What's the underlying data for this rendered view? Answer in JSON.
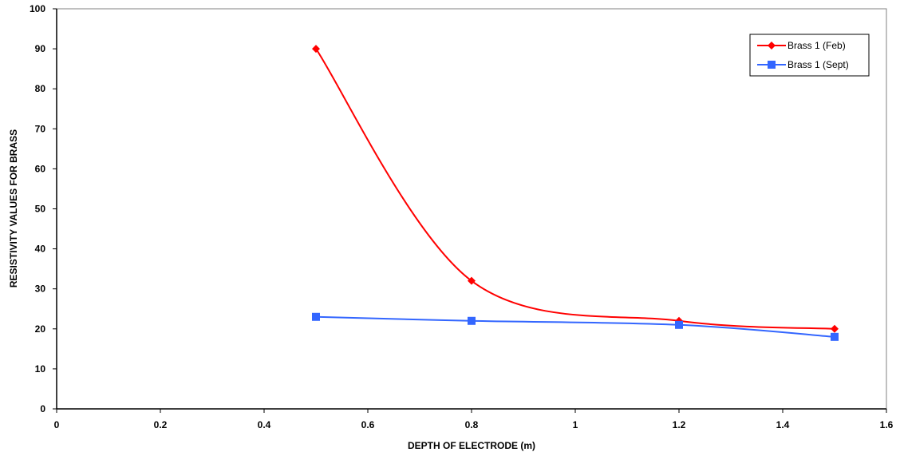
{
  "chart_data": {
    "type": "line",
    "xlabel": "DEPTH OF ELECTRODE  (m)",
    "ylabel": "RESISTIVITY VALUES FOR BRASS",
    "xlim": [
      0,
      1.6
    ],
    "ylim": [
      0,
      100
    ],
    "x_ticks": [
      0,
      0.2,
      0.4,
      0.6,
      0.8,
      1,
      1.2,
      1.4,
      1.6
    ],
    "x_tick_labels": [
      "0",
      "0.2",
      "0.4",
      "0.6",
      "0.8",
      "1",
      "1.2",
      "1.4",
      "1.6"
    ],
    "y_ticks": [
      0,
      10,
      20,
      30,
      40,
      50,
      60,
      70,
      80,
      90,
      100
    ],
    "y_tick_labels": [
      "0",
      "10",
      "20",
      "30",
      "40",
      "50",
      "60",
      "70",
      "80",
      "90",
      "100"
    ],
    "grid": false,
    "legend_position": "top-right",
    "series": [
      {
        "name": "Brass 1 (Feb)",
        "color": "#ff0000",
        "marker": "diamond",
        "smooth": true,
        "x": [
          0.5,
          0.8,
          1.2,
          1.5
        ],
        "y": [
          90,
          32,
          22,
          20
        ]
      },
      {
        "name": "Brass 1 (Sept)",
        "color": "#3366ff",
        "marker": "square",
        "smooth": true,
        "x": [
          0.5,
          0.8,
          1.2,
          1.5
        ],
        "y": [
          23,
          22,
          21,
          18
        ]
      }
    ]
  }
}
